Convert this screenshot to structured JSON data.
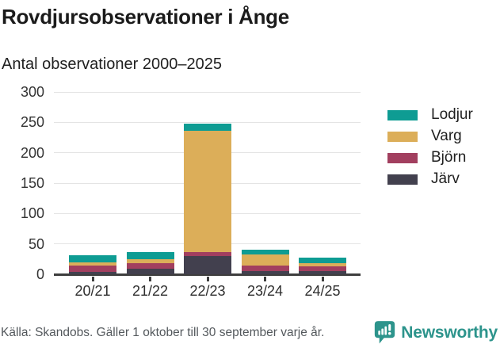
{
  "header": {
    "title": "Rovdjursobservationer i Ånge",
    "subtitle": "Antal observationer 2000–2025"
  },
  "chart_data": {
    "type": "bar",
    "stacked": true,
    "title": "Rovdjursobservationer i Ånge",
    "subtitle": "Antal observationer 2000–2025",
    "categories": [
      "20/21",
      "21/22",
      "22/23",
      "23/24",
      "24/25"
    ],
    "series": [
      {
        "name": "Järv",
        "color": "#42404e",
        "values": [
          4,
          9,
          30,
          5,
          5
        ]
      },
      {
        "name": "Björn",
        "color": "#a23f5f",
        "values": [
          10,
          9,
          6,
          9,
          8
        ]
      },
      {
        "name": "Varg",
        "color": "#dcae59",
        "values": [
          5,
          7,
          200,
          18,
          5
        ]
      },
      {
        "name": "Lodjur",
        "color": "#0e9c93",
        "values": [
          12,
          12,
          12,
          8,
          10
        ]
      }
    ],
    "totals": [
      31,
      37,
      248,
      40,
      28
    ],
    "stack_order_bottom_to_top": [
      "Järv",
      "Björn",
      "Varg",
      "Lodjur"
    ],
    "legend_order": [
      "Lodjur",
      "Varg",
      "Björn",
      "Järv"
    ],
    "legend_position": "right",
    "xlabel": "",
    "ylabel": "",
    "ylim": [
      0,
      300
    ],
    "y_ticks": [
      0,
      50,
      100,
      150,
      200,
      250,
      300
    ],
    "grid": "horizontal",
    "gridline_color": "#e4e4e4",
    "axis_color": "#3e3e3e"
  },
  "footer": {
    "source": "Källa: Skandobs. Gäller 1 oktober till 30 september varje år.",
    "brand": "Newsworthy",
    "brand_color": "#2d948c"
  }
}
